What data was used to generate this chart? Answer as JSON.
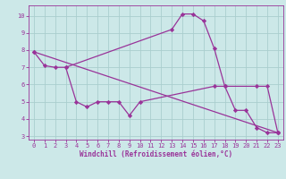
{
  "background_color": "#cce8e8",
  "grid_color": "#aacece",
  "line_color": "#993399",
  "marker": "D",
  "markersize": 2.2,
  "linewidth": 0.9,
  "xlabel": "Windchill (Refroidissement éolien,°C)",
  "xlabel_color": "#993399",
  "tick_color": "#993399",
  "ylim": [
    2.8,
    10.6
  ],
  "xlim": [
    -0.5,
    23.5
  ],
  "yticks": [
    3,
    4,
    5,
    6,
    7,
    8,
    9,
    10
  ],
  "xticks": [
    0,
    1,
    2,
    3,
    4,
    5,
    6,
    7,
    8,
    9,
    10,
    11,
    12,
    13,
    14,
    15,
    16,
    17,
    18,
    19,
    20,
    21,
    22,
    23
  ],
  "series": [
    {
      "x": [
        0,
        23
      ],
      "y": [
        7.9,
        3.2
      ]
    },
    {
      "x": [
        0,
        1,
        2,
        3,
        13,
        14,
        15,
        16,
        17,
        18,
        21,
        22,
        23
      ],
      "y": [
        7.9,
        7.1,
        7.0,
        7.0,
        9.2,
        10.1,
        10.1,
        9.7,
        8.1,
        5.9,
        5.9,
        5.9,
        3.2
      ]
    },
    {
      "x": [
        3,
        4,
        5,
        6,
        7,
        8,
        9,
        10,
        17,
        18,
        19,
        20,
        21,
        22,
        23
      ],
      "y": [
        7.0,
        5.0,
        4.7,
        5.0,
        5.0,
        5.0,
        4.2,
        5.0,
        5.9,
        5.9,
        4.5,
        4.5,
        3.5,
        3.2,
        3.2
      ]
    }
  ]
}
